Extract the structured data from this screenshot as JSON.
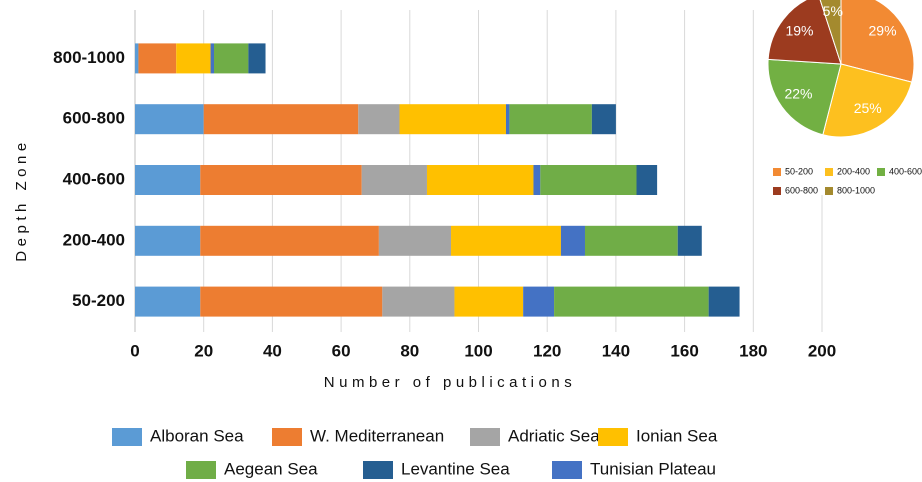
{
  "chart_data": [
    {
      "type": "stacked_barh",
      "xlabel": "Number of publications",
      "ylabel": "Depth Zone",
      "categories": [
        "800-1000",
        "600-800",
        "400-600",
        "200-400",
        "50-200"
      ],
      "series": [
        {
          "name": "Alboran Sea",
          "color": "#5b9bd5",
          "values": [
            1,
            20,
            19,
            19,
            19
          ]
        },
        {
          "name": "W. Mediterranean",
          "color": "#ed7d31",
          "values": [
            11,
            45,
            47,
            52,
            53
          ]
        },
        {
          "name": "Adriatic Sea",
          "color": "#a5a5a5",
          "values": [
            0,
            12,
            19,
            21,
            21
          ]
        },
        {
          "name": "Ionian Sea",
          "color": "#ffc000",
          "values": [
            10,
            31,
            31,
            32,
            20
          ]
        },
        {
          "name": "Tunisian Plateau",
          "color": "#4472c4",
          "values": [
            1,
            1,
            2,
            7,
            9
          ]
        },
        {
          "name": "Aegean Sea",
          "color": "#70ad47",
          "values": [
            10,
            24,
            28,
            27,
            45
          ]
        },
        {
          "name": "Levantine Sea",
          "color": "#255e91",
          "values": [
            5,
            7,
            6,
            7,
            9
          ]
        }
      ],
      "xlim": [
        0,
        200
      ],
      "xticks": [
        0,
        20,
        40,
        60,
        80,
        100,
        120,
        140,
        160,
        180,
        200
      ],
      "grid": true
    },
    {
      "type": "pie",
      "categories": [
        "50-200",
        "200-400",
        "400-600",
        "600-800",
        "800-1000"
      ],
      "values": [
        29,
        25,
        22,
        19,
        5
      ],
      "value_labels": [
        "29%",
        "25%",
        "22%",
        "19%",
        "5%"
      ],
      "colors": [
        "#f28a33",
        "#fdc01f",
        "#72b043",
        "#9c3b1f",
        "#a48a2e"
      ]
    }
  ]
}
